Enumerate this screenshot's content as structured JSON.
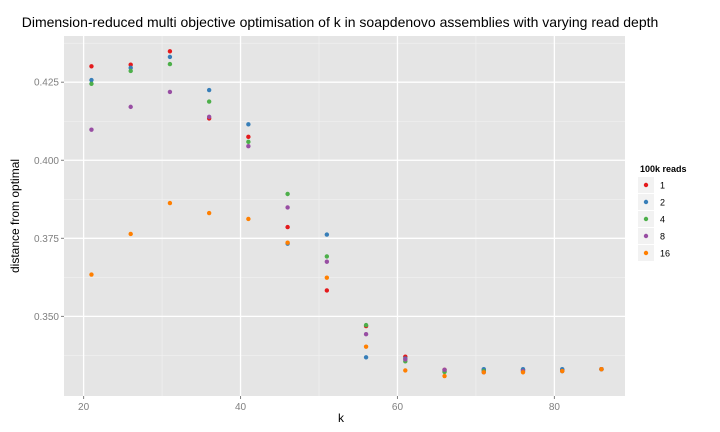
{
  "chart_data": {
    "type": "scatter",
    "title": "Dimension-reduced multi objective optimisation of k in soapdenovo assemblies with varying read depth",
    "xlabel": "k",
    "ylabel": "distance from optimal",
    "xlim": [
      17.5,
      89
    ],
    "ylim": [
      0.3245,
      0.4398
    ],
    "x_ticks": [
      20,
      40,
      60,
      80
    ],
    "y_ticks": [
      0.35,
      0.375,
      0.4,
      0.425
    ],
    "x_tick_labels": [
      "20",
      "40",
      "60",
      "80"
    ],
    "y_tick_labels": [
      "0.350",
      "0.375",
      "0.400",
      "0.425"
    ],
    "grid": true,
    "legend": {
      "title": "100k reads",
      "position": "right"
    },
    "series": [
      {
        "name": "1",
        "color": "#E41A1C",
        "x": [
          21,
          26,
          31,
          36,
          41,
          46,
          51,
          56,
          61,
          66,
          71,
          76,
          81,
          86
        ],
        "y": [
          0.4301,
          0.4306,
          0.4349,
          0.4134,
          0.4075,
          0.3786,
          0.3583,
          0.3469,
          0.3371,
          0.3329,
          0.3329,
          0.3329,
          0.3329,
          0.3331
        ]
      },
      {
        "name": "2",
        "color": "#377EB8",
        "x": [
          21,
          26,
          31,
          36,
          41,
          46,
          51,
          56,
          61,
          66,
          71,
          76,
          81,
          86
        ],
        "y": [
          0.4257,
          0.4296,
          0.4331,
          0.4225,
          0.4115,
          0.3733,
          0.3762,
          0.3369,
          0.3365,
          0.3325,
          0.3331,
          0.3331,
          0.3331,
          0.3331
        ]
      },
      {
        "name": "4",
        "color": "#4DAF4A",
        "x": [
          21,
          26,
          31,
          36,
          41,
          46,
          51,
          56,
          61,
          66,
          71,
          76,
          81,
          86
        ],
        "y": [
          0.4245,
          0.4286,
          0.4308,
          0.4188,
          0.4059,
          0.3892,
          0.3692,
          0.3472,
          0.3356,
          0.3322,
          0.3325,
          0.3325,
          0.3325,
          0.3331
        ]
      },
      {
        "name": "8",
        "color": "#984EA3",
        "x": [
          21,
          26,
          31,
          36,
          41,
          46,
          51,
          56,
          61,
          66,
          71,
          76,
          81,
          86
        ],
        "y": [
          0.4098,
          0.4171,
          0.4219,
          0.4139,
          0.4045,
          0.3849,
          0.3675,
          0.3443,
          0.3362,
          0.3329,
          0.3321,
          0.3325,
          0.3325,
          0.3331
        ]
      },
      {
        "name": "16",
        "color": "#FF7F00",
        "x": [
          21,
          26,
          31,
          36,
          41,
          46,
          51,
          56,
          61,
          66,
          71,
          76,
          81,
          86
        ],
        "y": [
          0.3634,
          0.3764,
          0.3863,
          0.3831,
          0.3812,
          0.3736,
          0.3624,
          0.3403,
          0.3327,
          0.3309,
          0.3321,
          0.3321,
          0.3325,
          0.3331
        ]
      }
    ]
  }
}
